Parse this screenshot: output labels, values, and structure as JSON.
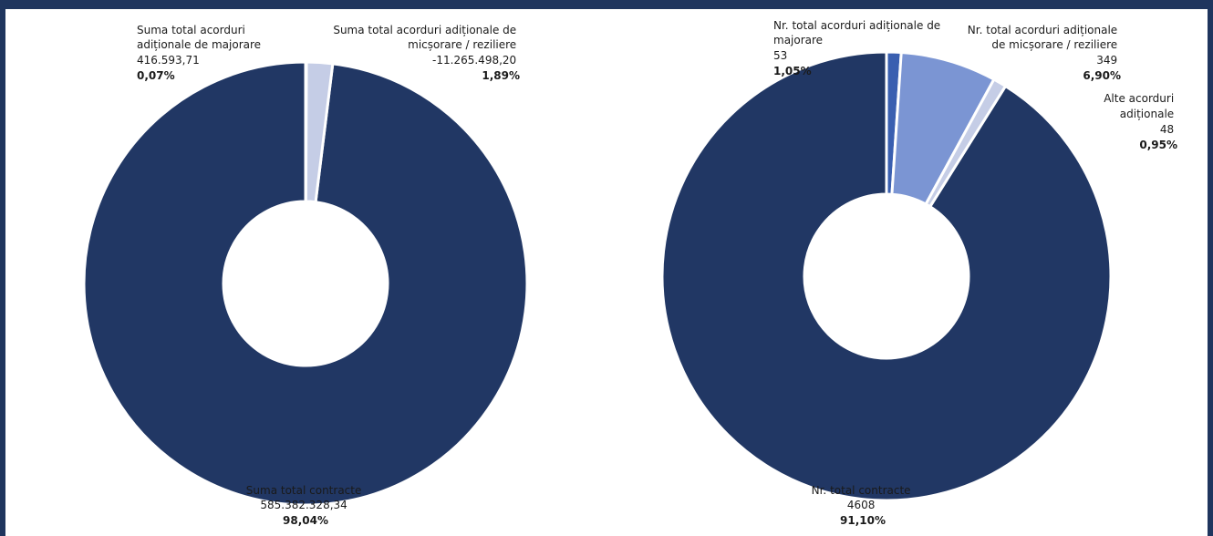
{
  "colors": {
    "dark": "#213764",
    "blue": "#3a5fb0",
    "mid": "#7b95d3",
    "light": "#aebbe0",
    "lightest": "#c5cde6",
    "frame": "#1f355e"
  },
  "chart_data": [
    {
      "type": "pie",
      "variant": "donut",
      "slices": [
        {
          "lines": [
            "Suma total contracte",
            "585.382.328,34"
          ],
          "value": 585382328.34,
          "percent": "98,04%",
          "color": "dark"
        },
        {
          "lines": [
            "Suma total acorduri",
            "adiționale de majorare",
            "416.593,71"
          ],
          "value": 416593.71,
          "percent": "0,07%",
          "color": "light"
        },
        {
          "lines": [
            "Suma total acorduri adiționale de",
            "micșorare / reziliere",
            "-11.265.498,20"
          ],
          "value": -11265498.2,
          "percent": "1,89%",
          "color": "lightest"
        }
      ]
    },
    {
      "type": "pie",
      "variant": "donut",
      "slices": [
        {
          "lines": [
            "Nr. total contracte",
            "4608"
          ],
          "value": 4608,
          "percent": "91,10%",
          "color": "dark"
        },
        {
          "lines": [
            "Nr. total acorduri adiționale de",
            "majorare",
            "53"
          ],
          "value": 53,
          "percent": "1,05%",
          "color": "blue"
        },
        {
          "lines": [
            "Nr. total acorduri adiționale",
            "de micșorare / reziliere",
            "349"
          ],
          "value": 349,
          "percent": "6,90%",
          "color": "mid"
        },
        {
          "lines": [
            "Alte acorduri",
            "adiționale",
            "48"
          ],
          "value": 48,
          "percent": "0,95%",
          "color": "lightest"
        }
      ]
    }
  ]
}
